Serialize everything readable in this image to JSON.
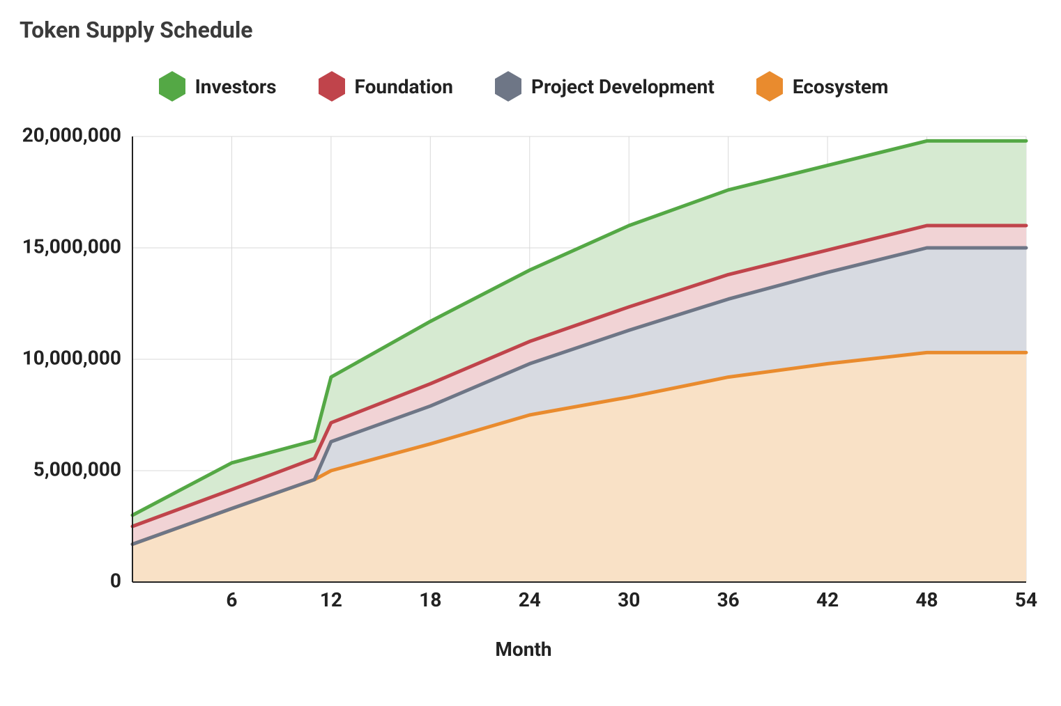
{
  "title": "Token Supply Schedule",
  "xlabel": "Month",
  "chart": {
    "type": "stacked-area",
    "xlim": [
      0,
      54
    ],
    "ylim": [
      0,
      20000000
    ],
    "x_ticks": [
      6,
      12,
      18,
      24,
      30,
      36,
      42,
      48,
      54
    ],
    "y_ticks": [
      0,
      5000000,
      10000000,
      15000000,
      20000000
    ],
    "y_tick_labels": [
      "0",
      "5,000,000",
      "10,000,000",
      "15,000,000",
      "20,000,000"
    ],
    "grid_color": "#d9d9d9",
    "grid_width": 1,
    "axis_color": "#222222",
    "axis_width": 2,
    "background_color": "#ffffff",
    "line_width": 5,
    "fill_opacity": 0.28,
    "font_size_ticks": 28,
    "font_size_title": 32,
    "font_size_legend": 28,
    "legend_position": "top-center",
    "x_values": [
      0,
      6,
      11,
      12,
      18,
      24,
      30,
      36,
      42,
      48,
      54
    ],
    "series": [
      {
        "name": "Ecosystem",
        "stroke": "#e98b2e",
        "fill": "#f9e1c6",
        "cum": [
          1700000,
          3300000,
          4600000,
          5000000,
          6200000,
          7500000,
          8300000,
          9200000,
          9800000,
          10300000,
          10300000
        ]
      },
      {
        "name": "Project Development",
        "stroke": "#6e7686",
        "fill": "#d7dae1",
        "cum": [
          1700000,
          3300000,
          4600000,
          6300000,
          7900000,
          9800000,
          11300000,
          12700000,
          13900000,
          15000000,
          15000000
        ]
      },
      {
        "name": "Foundation",
        "stroke": "#c0444b",
        "fill": "#f1d3d5",
        "cum": [
          2500000,
          4150000,
          5550000,
          7150000,
          8900000,
          10800000,
          12350000,
          13800000,
          14900000,
          16000000,
          16000000
        ]
      },
      {
        "name": "Investors",
        "stroke": "#54a845",
        "fill": "#d6ead1",
        "cum": [
          3000000,
          5350000,
          6350000,
          9200000,
          11700000,
          14000000,
          16000000,
          17600000,
          18700000,
          19800000,
          19800000
        ]
      }
    ],
    "legend_order": [
      "Investors",
      "Foundation",
      "Project Development",
      "Ecosystem"
    ],
    "legend_marker_shape": "hexagon"
  }
}
